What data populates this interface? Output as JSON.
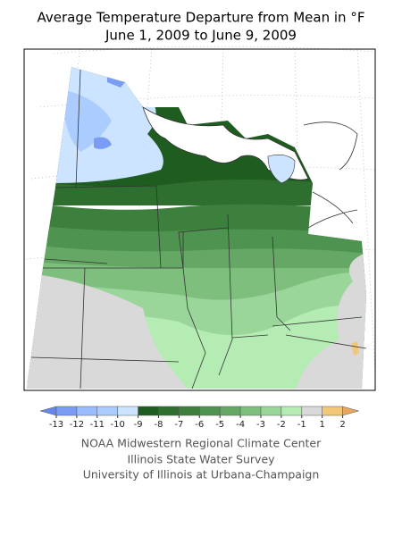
{
  "title": "Average Temperature Departure from Mean in °F",
  "subtitle": "June 1, 2009 to June 9, 2009",
  "legend": {
    "ticks": [
      -13,
      -12,
      -11,
      -10,
      -9,
      -8,
      -7,
      -6,
      -5,
      -4,
      -3,
      -2,
      -1,
      1,
      2
    ],
    "colors": [
      "#6688ee",
      "#7a9cf5",
      "#99bbff",
      "#aaccff",
      "#cce4ff",
      "#1f5c1f",
      "#2e6e2e",
      "#3d7f3d",
      "#4f9350",
      "#65a865",
      "#7ebf7e",
      "#9ad69a",
      "#b4ecb4",
      "#d9d9d9",
      "#f0c878",
      "#e8a860"
    ]
  },
  "credits": [
    "NOAA Midwestern Regional Climate Center",
    "Illinois State Water Survey",
    "University of Illinois at Urbana-Champaign"
  ]
}
